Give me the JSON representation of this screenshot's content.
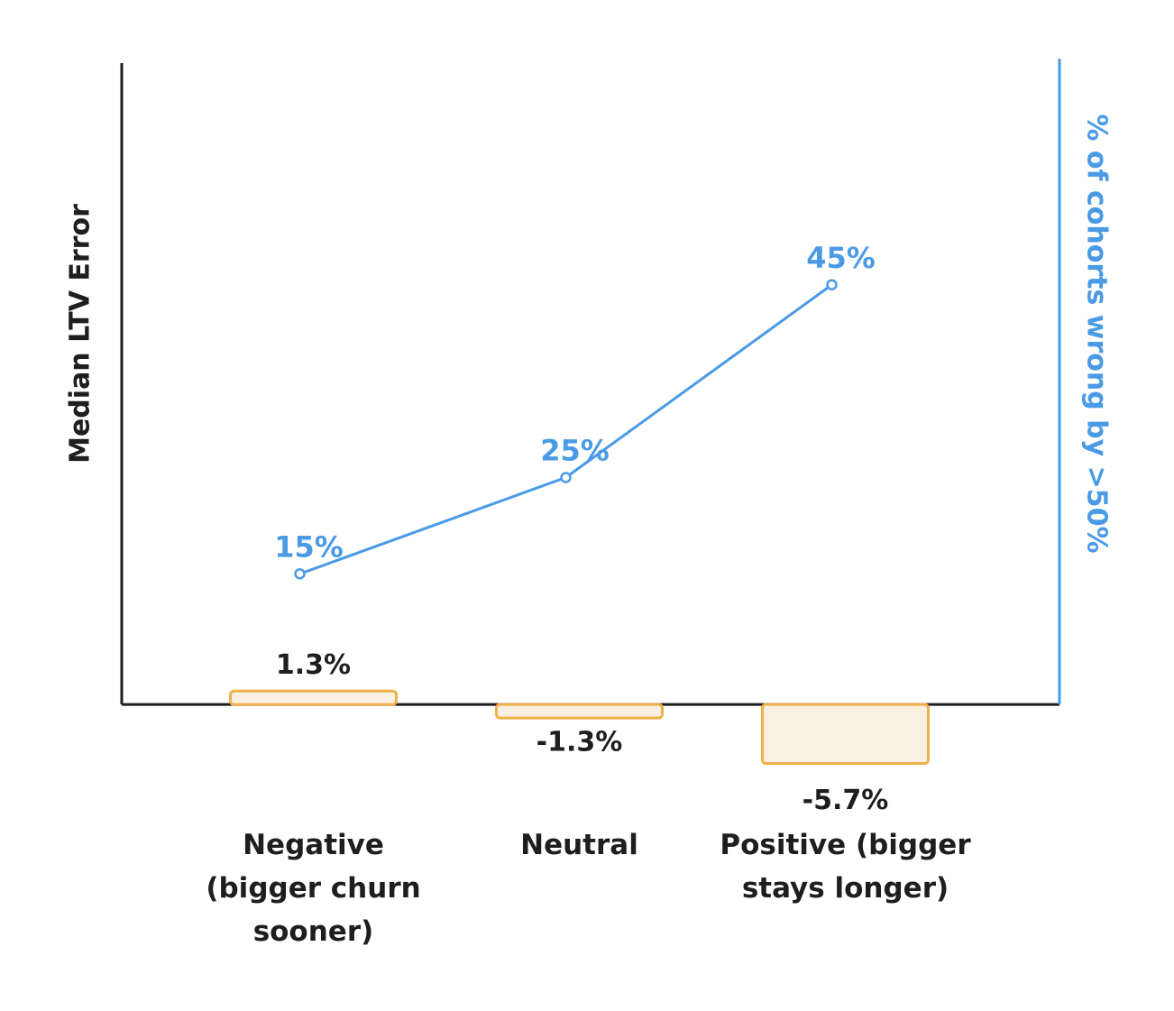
{
  "chart_data": {
    "type": "bar_line",
    "y_label": "Median LTV Error",
    "y2_label": "% of cohorts wrong by >50%",
    "categories": [
      "Negative\n(bigger churn\nsooner)",
      "Neutral",
      "Positive (bigger\nstays longer)"
    ],
    "series": [
      {
        "type": "bar",
        "color": "#f0b04a",
        "fill": "#f9efe3",
        "values": [
          1.3,
          -1.3,
          -5.7
        ],
        "value_labels": [
          "1.3%",
          "-1.3%",
          "-5.7%"
        ]
      },
      {
        "type": "line",
        "axis": "y2",
        "color": "#4a9ae6",
        "values": [
          15,
          25,
          45
        ],
        "value_labels": [
          "15%",
          "25%",
          "45%"
        ]
      }
    ],
    "ylim": [
      -6,
      62
    ],
    "y2lim": [
      -5,
      68
    ]
  }
}
